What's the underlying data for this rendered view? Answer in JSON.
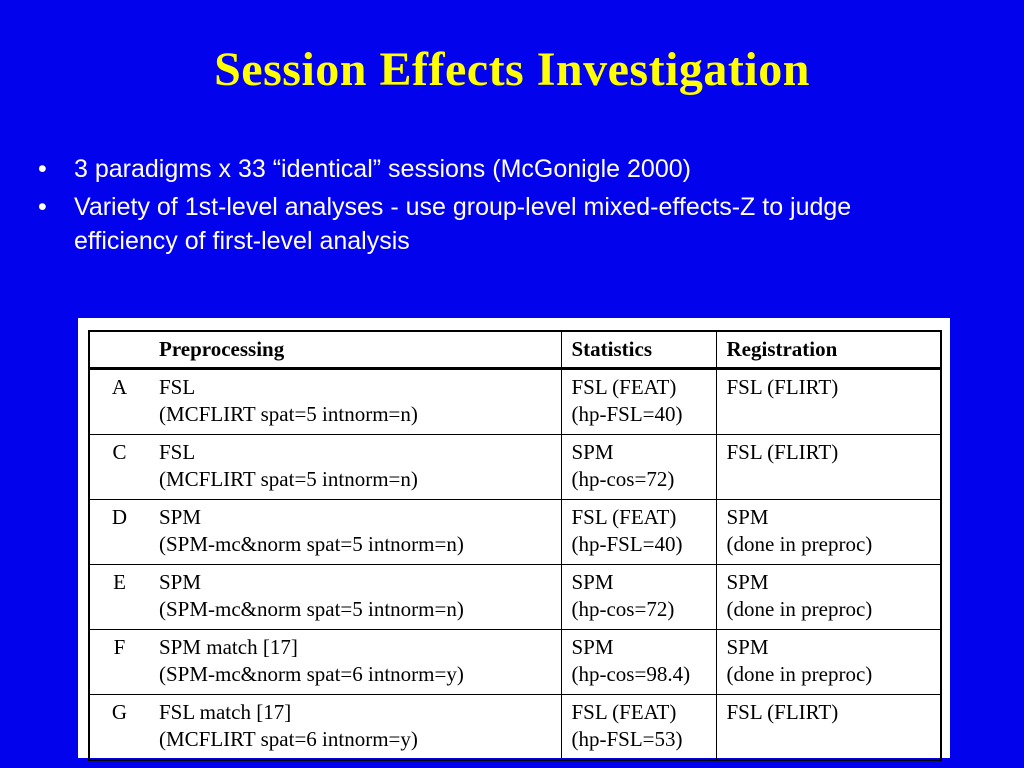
{
  "colors": {
    "bg": "#0202ec",
    "title": "#ffff00",
    "bullet_text": "#ffffff",
    "table_bg": "#ffffff",
    "table_text": "#000000",
    "table_border": "#000000"
  },
  "slide": {
    "title": "Session Effects Investigation",
    "bullets": [
      "3 paradigms x 33 “identical” sessions (McGonigle 2000)",
      "Variety of 1st-level analyses - use group-level mixed-effects-Z to judge efficiency of first-level analysis"
    ]
  },
  "table": {
    "headers": [
      "",
      "Preprocessing",
      "Statistics",
      "Registration"
    ],
    "rows": [
      {
        "id": "A",
        "pre": [
          "FSL",
          "(MCFLIRT spat=5 intnorm=n)"
        ],
        "stat": [
          "FSL (FEAT)",
          "(hp-FSL=40)"
        ],
        "reg": [
          "FSL (FLIRT)",
          ""
        ]
      },
      {
        "id": "C",
        "pre": [
          "FSL",
          "(MCFLIRT spat=5 intnorm=n)"
        ],
        "stat": [
          "SPM",
          "(hp-cos=72)"
        ],
        "reg": [
          "FSL (FLIRT)",
          ""
        ]
      },
      {
        "id": "D",
        "pre": [
          "SPM",
          "(SPM-mc&norm spat=5 intnorm=n)"
        ],
        "stat": [
          "FSL (FEAT)",
          "(hp-FSL=40)"
        ],
        "reg": [
          "SPM",
          "(done in preproc)"
        ]
      },
      {
        "id": "E",
        "pre": [
          "SPM",
          "(SPM-mc&norm spat=5 intnorm=n)"
        ],
        "stat": [
          "SPM",
          "(hp-cos=72)"
        ],
        "reg": [
          "SPM",
          "(done in preproc)"
        ]
      },
      {
        "id": "F",
        "pre": [
          "SPM match [17]",
          "(SPM-mc&norm spat=6 intnorm=y)"
        ],
        "stat": [
          "SPM",
          "(hp-cos=98.4)"
        ],
        "reg": [
          "SPM",
          "(done in preproc)"
        ]
      },
      {
        "id": "G",
        "pre": [
          "FSL match [17]",
          "(MCFLIRT spat=6 intnorm=y)"
        ],
        "stat": [
          "FSL (FEAT)",
          "(hp-FSL=53)"
        ],
        "reg": [
          "FSL (FLIRT)",
          ""
        ]
      }
    ]
  }
}
